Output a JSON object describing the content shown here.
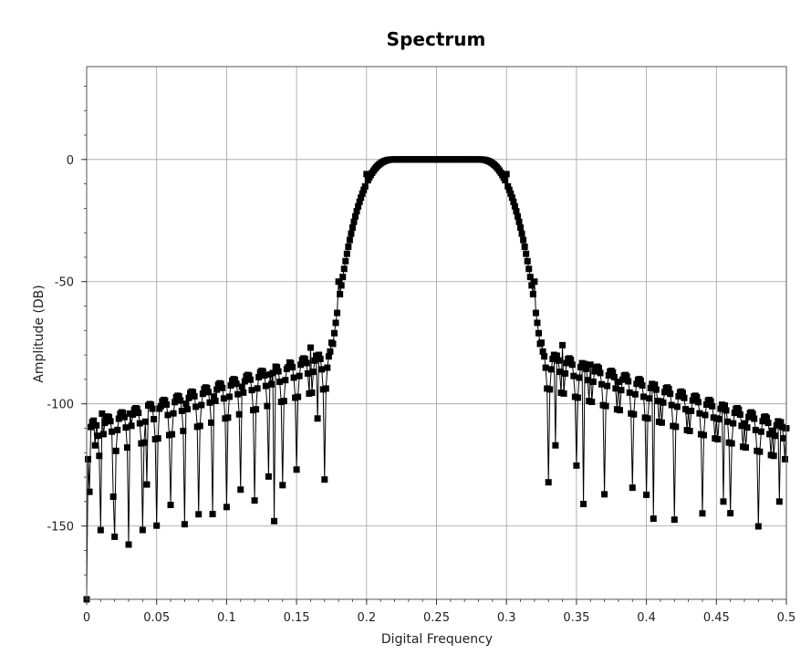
{
  "chart_data": {
    "type": "line",
    "title": "Spectrum",
    "xlabel": "Digital Frequency",
    "ylabel": "Amplitude (DB)",
    "xlim": [
      0,
      0.5
    ],
    "ylim": [
      -180,
      38
    ],
    "x_ticks": [
      0,
      0.05,
      0.1,
      0.15,
      0.2,
      0.25,
      0.3,
      0.35,
      0.4,
      0.45,
      0.5
    ],
    "x_tick_labels": [
      "0",
      "0.05",
      "0.1",
      "0.15",
      "0.2",
      "0.25",
      "0.3",
      "0.35",
      "0.4",
      "0.45",
      "0.5"
    ],
    "y_ticks": [
      0,
      -50,
      -100,
      -150
    ],
    "y_tick_labels": [
      "0",
      "-50",
      "-100",
      "-150"
    ],
    "grid": true,
    "marker": "square",
    "series": [
      {
        "color": "#000000",
        "passband": [
          0.2,
          0.3
        ],
        "key_points": [
          {
            "x": 0.0,
            "y": -180
          },
          {
            "x": 0.002,
            "y": -136
          },
          {
            "x": 0.006,
            "y": -117
          },
          {
            "x": 0.011,
            "y": -104
          },
          {
            "x": 0.019,
            "y": -138
          },
          {
            "x": 0.031,
            "y": -104
          },
          {
            "x": 0.043,
            "y": -133
          },
          {
            "x": 0.052,
            "y": -102
          },
          {
            "x": 0.071,
            "y": -100
          },
          {
            "x": 0.091,
            "y": -97
          },
          {
            "x": 0.111,
            "y": -93
          },
          {
            "x": 0.131,
            "y": -88
          },
          {
            "x": 0.134,
            "y": -148
          },
          {
            "x": 0.144,
            "y": -85
          },
          {
            "x": 0.165,
            "y": -106
          },
          {
            "x": 0.16,
            "y": -77
          },
          {
            "x": 0.175,
            "y": -75
          },
          {
            "x": 0.18,
            "y": -50
          },
          {
            "x": 0.2,
            "y": -6
          },
          {
            "x": 0.22,
            "y": 0
          },
          {
            "x": 0.28,
            "y": 0
          },
          {
            "x": 0.3,
            "y": -6
          },
          {
            "x": 0.32,
            "y": -50
          },
          {
            "x": 0.325,
            "y": -75
          },
          {
            "x": 0.335,
            "y": -117
          },
          {
            "x": 0.34,
            "y": -76
          },
          {
            "x": 0.355,
            "y": -141
          },
          {
            "x": 0.36,
            "y": -84
          },
          {
            "x": 0.38,
            "y": -91
          },
          {
            "x": 0.405,
            "y": -147
          },
          {
            "x": 0.41,
            "y": -99
          },
          {
            "x": 0.43,
            "y": -103
          },
          {
            "x": 0.45,
            "y": -106
          },
          {
            "x": 0.455,
            "y": -140
          },
          {
            "x": 0.47,
            "y": -108
          },
          {
            "x": 0.49,
            "y": -111
          },
          {
            "x": 0.495,
            "y": -140
          },
          {
            "x": 0.5,
            "y": -110
          }
        ]
      }
    ]
  }
}
